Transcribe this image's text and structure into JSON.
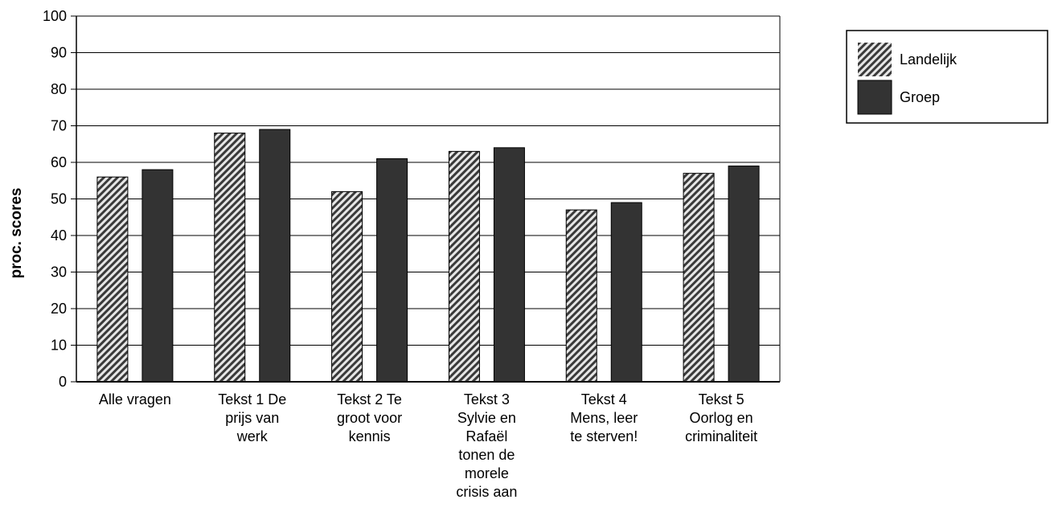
{
  "chart_data": {
    "type": "bar",
    "title": "",
    "xlabel": "",
    "ylabel": "proc. scores",
    "ylim": [
      0,
      100
    ],
    "yticks": [
      0,
      10,
      20,
      30,
      40,
      50,
      60,
      70,
      80,
      90,
      100
    ],
    "grid": "horizontal",
    "legend_position": "top-right",
    "categories": [
      [
        "Alle vragen"
      ],
      [
        "Tekst 1  De",
        "prijs van",
        "werk"
      ],
      [
        "Tekst 2  Te",
        "groot voor",
        "kennis"
      ],
      [
        "Tekst 3",
        "Sylvie en",
        "Rafaël",
        "tonen de",
        "morele",
        "crisis aan"
      ],
      [
        "Tekst 4",
        "Mens, leer",
        "te sterven!"
      ],
      [
        "Tekst 5",
        "Oorlog en",
        "criminaliteit"
      ]
    ],
    "series": [
      {
        "name": "Landelijk",
        "values": [
          56,
          68,
          52,
          63,
          47,
          57
        ],
        "fill": "hatch"
      },
      {
        "name": "Groep",
        "values": [
          58,
          69,
          61,
          64,
          49,
          59
        ],
        "fill": "#333333"
      }
    ]
  }
}
